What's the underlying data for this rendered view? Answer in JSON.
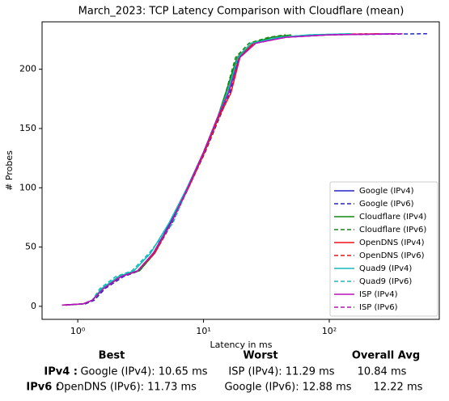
{
  "chart_data": {
    "type": "line",
    "title": "March_2023: TCP Latency Comparison with Cloudflare (mean)",
    "xlabel": "Latency in ms",
    "ylabel": "# Probes",
    "xscale": "log",
    "xlim": [
      0.52,
      750
    ],
    "ylim": [
      -11,
      240
    ],
    "xticks": [
      {
        "value": 1,
        "label": "10⁰"
      },
      {
        "value": 10,
        "label": "10¹"
      },
      {
        "value": 100,
        "label": "10²"
      }
    ],
    "yticks": [
      0,
      50,
      100,
      150,
      200
    ],
    "legend": "lower right",
    "series": [
      {
        "name": "Google (IPv4)",
        "color": "#2222cc",
        "linestyle": "solid",
        "x": [
          0.75,
          1.1,
          1.3,
          1.6,
          2.2,
          3,
          4,
          5.4,
          7.4,
          10,
          13.2,
          15.8,
          19,
          25,
          40,
          80,
          350
        ],
        "values": [
          1,
          2,
          5,
          15,
          25,
          30,
          45,
          70,
          100,
          130,
          160,
          180,
          210,
          222,
          227,
          229,
          230
        ]
      },
      {
        "name": "Google (IPv6)",
        "color": "#2222cc",
        "linestyle": "dashed",
        "x": [
          0.8,
          1.15,
          1.35,
          1.65,
          2.3,
          3.1,
          4.1,
          5.6,
          7.6,
          10.3,
          13.5,
          16.2,
          19.5,
          26,
          45,
          100,
          600
        ],
        "values": [
          1,
          2,
          5,
          15,
          25,
          30,
          45,
          70,
          100,
          130,
          160,
          180,
          210,
          222,
          227,
          229,
          230
        ]
      },
      {
        "name": "Cloudflare (IPv4)",
        "color": "#118811",
        "linestyle": "solid",
        "x": [
          0.8,
          1.1,
          1.3,
          1.6,
          2.2,
          3.1,
          4.1,
          5.5,
          7.5,
          10,
          13,
          15,
          18.5,
          24,
          35,
          50
        ],
        "values": [
          1,
          2,
          5,
          15,
          25,
          30,
          45,
          70,
          100,
          130,
          160,
          180,
          210,
          222,
          227,
          229
        ]
      },
      {
        "name": "Cloudflare (IPv6)",
        "color": "#118811",
        "linestyle": "dashed",
        "x": [
          0.8,
          1.1,
          1.3,
          1.6,
          2.1,
          3,
          4,
          5.5,
          7.5,
          10,
          13,
          15,
          18,
          23,
          33,
          45
        ],
        "values": [
          1,
          2,
          5,
          15,
          25,
          30,
          45,
          70,
          100,
          130,
          160,
          180,
          210,
          222,
          227,
          229
        ]
      },
      {
        "name": "OpenDNS (IPv4)",
        "color": "#ee1111",
        "linestyle": "solid",
        "x": [
          0.75,
          1.1,
          1.3,
          1.6,
          2.2,
          3,
          4.1,
          5.5,
          7.6,
          10.2,
          13.3,
          16.5,
          19.5,
          25,
          40,
          90,
          250
        ],
        "values": [
          1,
          2,
          5,
          15,
          25,
          30,
          45,
          70,
          100,
          130,
          160,
          180,
          210,
          222,
          227,
          229,
          230
        ]
      },
      {
        "name": "OpenDNS (IPv6)",
        "color": "#ee1111",
        "linestyle": "dashed",
        "x": [
          0.8,
          1.1,
          1.3,
          1.55,
          2.2,
          3,
          4,
          5.5,
          7.5,
          10,
          13,
          15.5,
          19,
          25,
          40,
          80,
          200
        ],
        "values": [
          1,
          2,
          5,
          15,
          25,
          30,
          45,
          70,
          100,
          130,
          160,
          180,
          210,
          222,
          227,
          229,
          230
        ]
      },
      {
        "name": "Quad9 (IPv4)",
        "color": "#11bbbb",
        "linestyle": "solid",
        "x": [
          0.8,
          1.1,
          1.3,
          1.55,
          2.1,
          2.8,
          3.8,
          5.3,
          7.4,
          10,
          13,
          15.4,
          18.8,
          24,
          40,
          70,
          150
        ],
        "values": [
          1,
          2,
          5,
          15,
          25,
          30,
          45,
          70,
          100,
          130,
          160,
          180,
          210,
          222,
          227,
          229,
          230
        ]
      },
      {
        "name": "Quad9 (IPv6)",
        "color": "#11bbbb",
        "linestyle": "dashed",
        "x": [
          0.8,
          1.1,
          1.3,
          1.5,
          2,
          2.7,
          3.7,
          5.7,
          7.5,
          10,
          13,
          15.4,
          18.8,
          24,
          40,
          70,
          150
        ],
        "values": [
          1,
          2,
          5,
          15,
          25,
          30,
          45,
          70,
          100,
          130,
          160,
          180,
          210,
          222,
          227,
          229,
          230
        ]
      },
      {
        "name": "ISP (IPv4)",
        "color": "#bb11bb",
        "linestyle": "solid",
        "x": [
          0.75,
          1.1,
          1.3,
          1.6,
          2.2,
          3,
          4,
          5.5,
          7.5,
          10,
          13,
          15.8,
          19.5,
          26,
          45,
          100,
          350
        ],
        "values": [
          1,
          2,
          5,
          15,
          25,
          30,
          45,
          70,
          100,
          130,
          160,
          180,
          210,
          222,
          227,
          229,
          230
        ]
      },
      {
        "name": "ISP (IPv6)",
        "color": "#bb11bb",
        "linestyle": "dashed",
        "x": [
          0.8,
          1.1,
          1.3,
          1.6,
          2.2,
          3,
          4,
          5.5,
          7.5,
          10,
          13,
          15.8,
          19.5,
          26,
          45,
          100,
          400
        ],
        "values": [
          1,
          2,
          5,
          15,
          25,
          30,
          45,
          70,
          100,
          130,
          160,
          180,
          210,
          222,
          227,
          229,
          230
        ]
      }
    ]
  },
  "summary": {
    "headers": [
      "Best",
      "Worst",
      "Overall Avg"
    ],
    "rows": [
      {
        "label": "IPv4 :",
        "cells": [
          "Google (IPv4): 10.65 ms",
          "ISP (IPv4): 11.29 ms",
          "10.84 ms"
        ]
      },
      {
        "label": "IPv6 :",
        "cells": [
          "OpenDNS (IPv6): 11.73 ms",
          "Google (IPv6): 12.88 ms",
          "12.22 ms"
        ]
      }
    ]
  }
}
